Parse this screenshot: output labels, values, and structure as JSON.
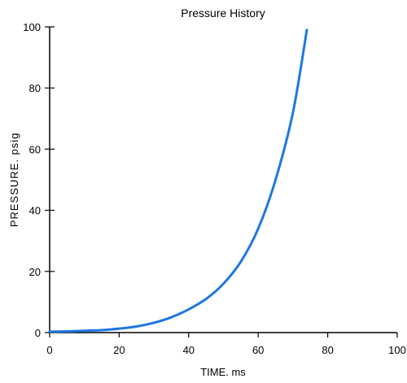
{
  "chart_data": {
    "type": "line",
    "title": "Pressure History",
    "xlabel": "TIME. ms",
    "ylabel": "PRESSURE. psig",
    "xlim": [
      0,
      100
    ],
    "ylim": [
      0,
      100
    ],
    "xticks": [
      "0",
      "20",
      "40",
      "60",
      "80",
      "100"
    ],
    "yticks": [
      "0",
      "20",
      "40",
      "60",
      "80",
      "100"
    ],
    "grid": false,
    "series": [
      {
        "color": "#1f77e0",
        "x": [
          0,
          5,
          10,
          15,
          20,
          25,
          30,
          35,
          40,
          45,
          50,
          55,
          60,
          65,
          70,
          74
        ],
        "y": [
          0.3,
          0.4,
          0.6,
          0.8,
          1.3,
          2.0,
          3.2,
          5.0,
          7.6,
          11.0,
          16.0,
          23.2,
          34.0,
          50.0,
          72.0,
          99.0
        ]
      }
    ]
  }
}
